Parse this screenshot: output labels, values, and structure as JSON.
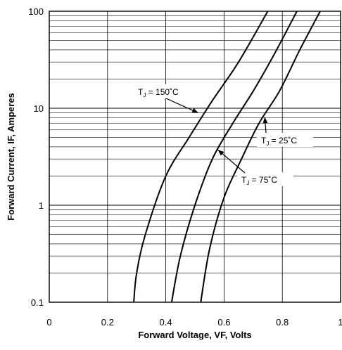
{
  "chart_data": {
    "type": "line",
    "title": "",
    "xlabel": "Forward Voltage, VF, Volts",
    "ylabel": "Forward Current, IF, Amperes",
    "xlim": [
      0,
      1
    ],
    "ylim": [
      0.1,
      100
    ],
    "y_scale": "log",
    "grid": true,
    "legend": "none",
    "x_ticks": [
      "0",
      "0.2",
      "0.4",
      "0.6",
      "0.8",
      "1"
    ],
    "y_ticks": [
      "0.1",
      "1",
      "10",
      "100"
    ],
    "series": [
      {
        "name": "TJ = 150°C",
        "x": [
          0.29,
          0.3,
          0.33,
          0.4,
          0.48,
          0.56,
          0.65,
          0.75
        ],
        "y": [
          0.1,
          0.2,
          0.5,
          2,
          5,
          12,
          30,
          100
        ]
      },
      {
        "name": "TJ = 75°C",
        "x": [
          0.42,
          0.45,
          0.5,
          0.56,
          0.63,
          0.7,
          0.77,
          0.85
        ],
        "y": [
          0.1,
          0.3,
          1,
          3,
          7,
          15,
          35,
          100
        ]
      },
      {
        "name": "TJ = 25°C",
        "x": [
          0.52,
          0.55,
          0.6,
          0.66,
          0.72,
          0.79,
          0.86,
          0.93
        ],
        "y": [
          0.1,
          0.35,
          1.2,
          3,
          7,
          15,
          40,
          100
        ]
      }
    ],
    "annotations": [
      {
        "main": "T",
        "sub": "J",
        "rest": " = 150˚C",
        "series": 0,
        "x": 0.51,
        "y": 9
      },
      {
        "main": "T",
        "sub": "J",
        "rest": " = 25˚C",
        "series": 2,
        "x": 0.74,
        "y": 8
      },
      {
        "main": "T",
        "sub": "J",
        "rest": " = 75˚C",
        "series": 1,
        "x": 0.58,
        "y": 3.7
      }
    ]
  }
}
